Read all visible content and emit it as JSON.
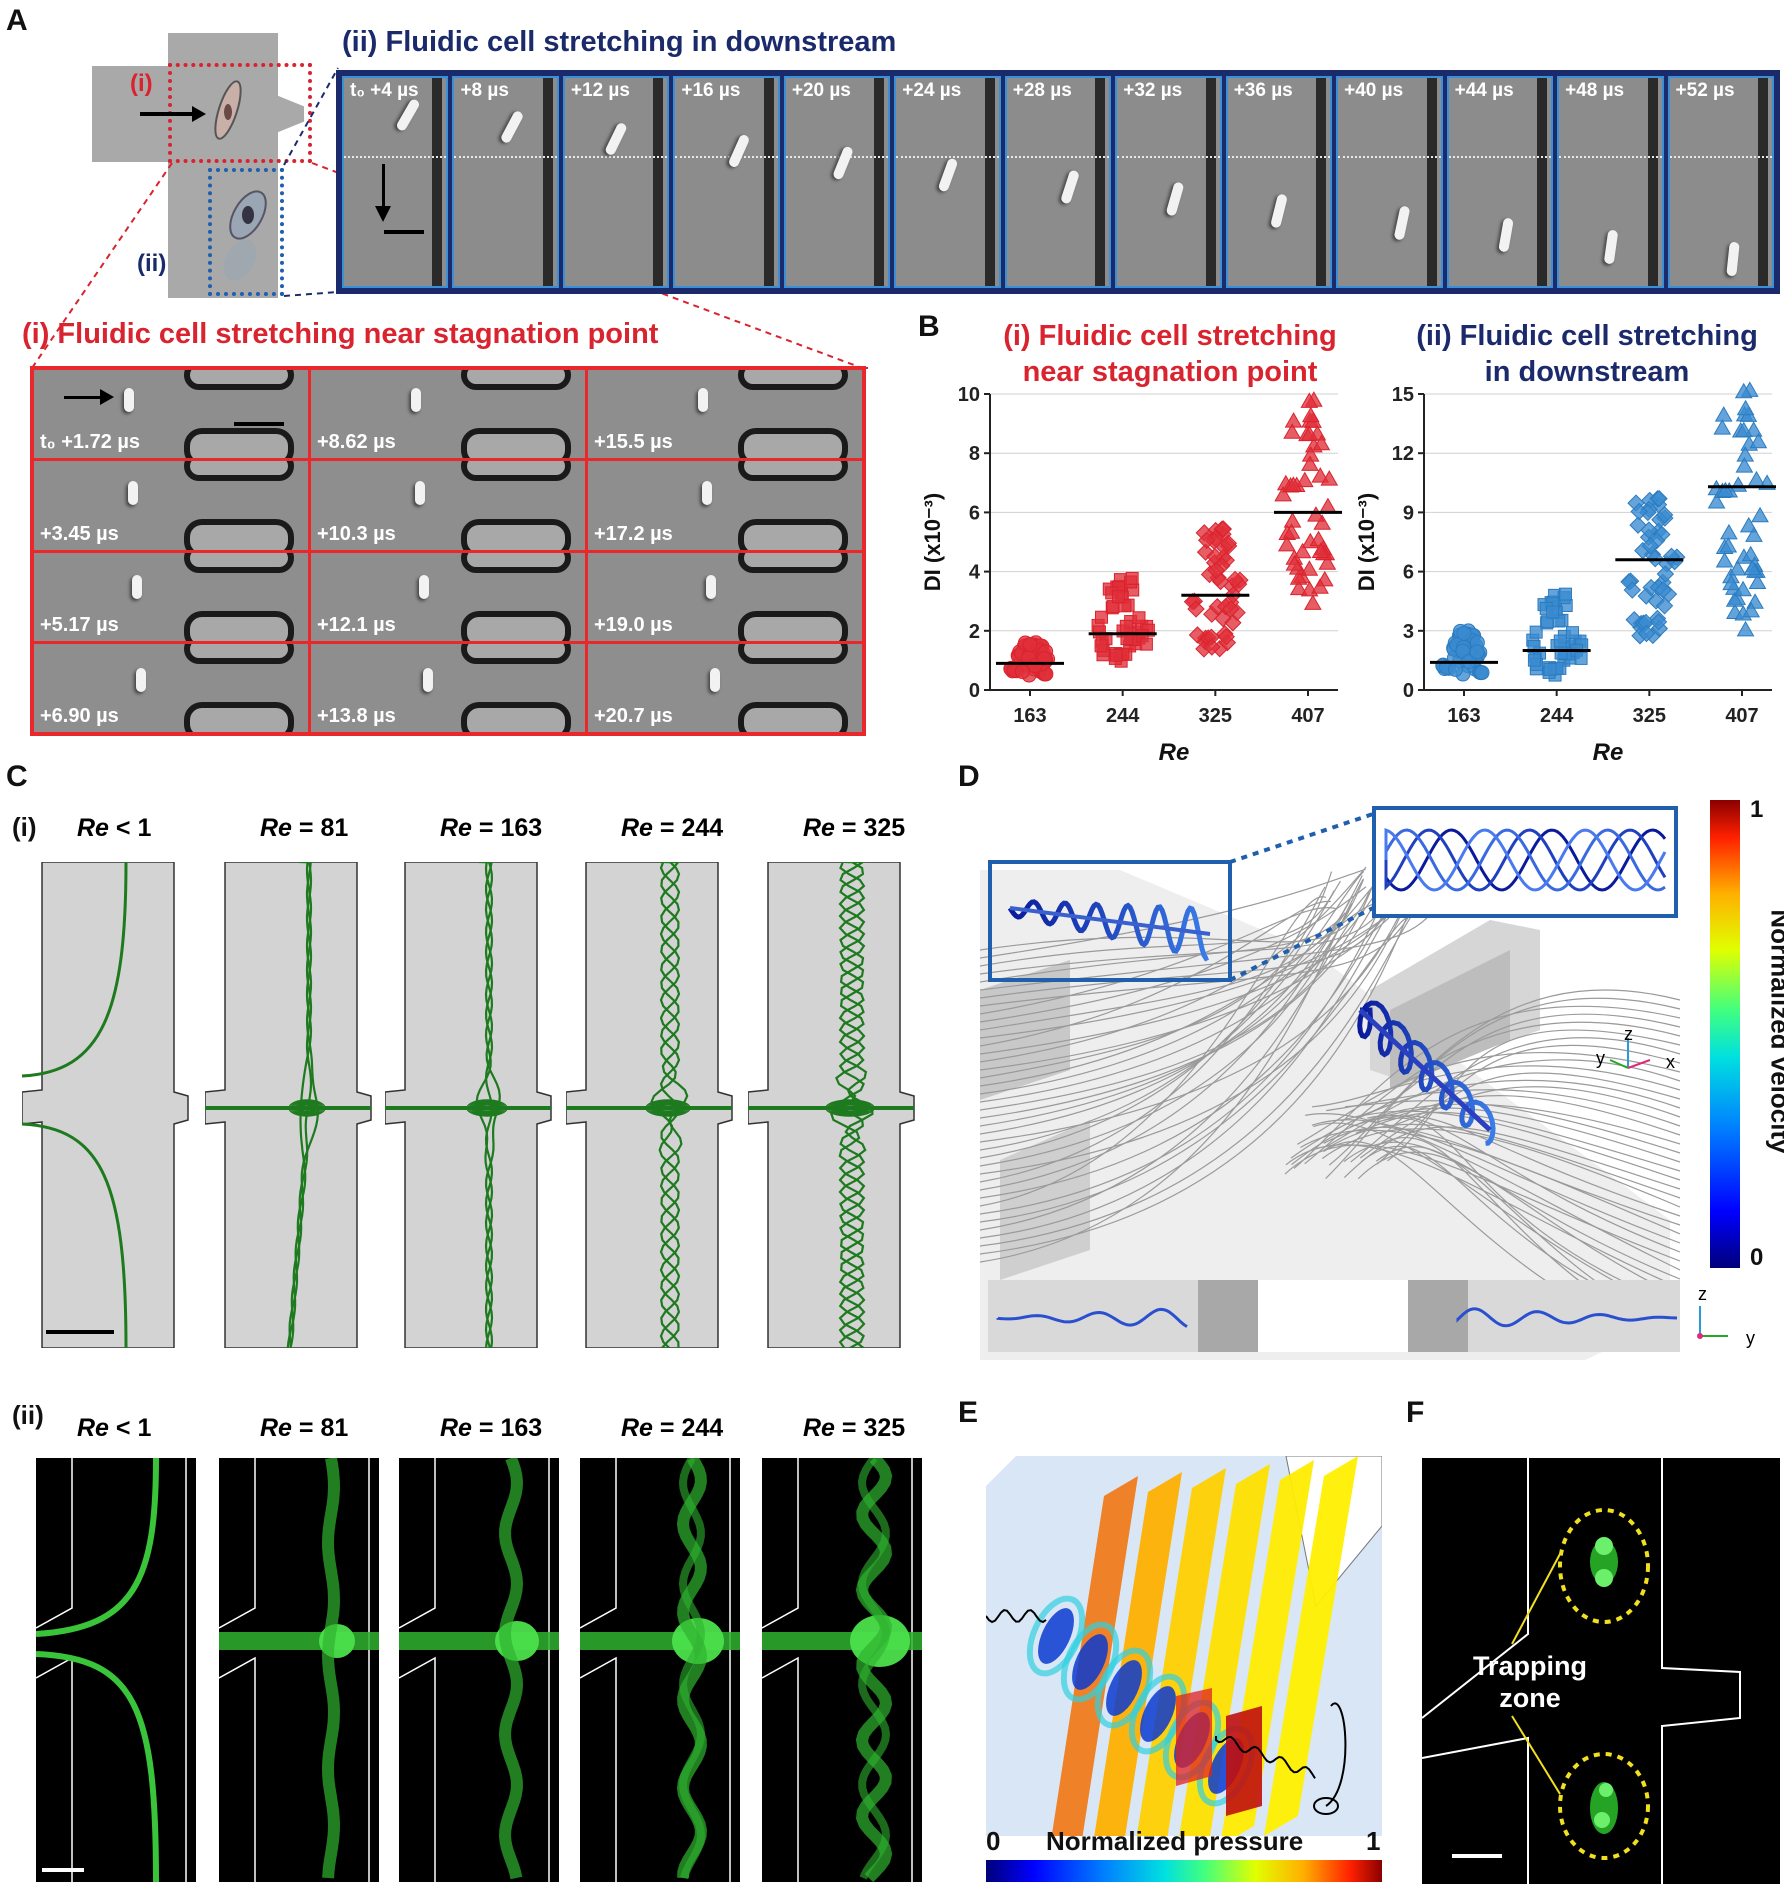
{
  "panel_labels": {
    "A": "A",
    "B": "B",
    "C": "C",
    "D": "D",
    "E": "E",
    "F": "F"
  },
  "panelA": {
    "title_ii": "(ii) Fluidic cell stretching in downstream",
    "title_i": "(i) Fluidic cell stretching near stagnation point",
    "schematic_i": "(i)",
    "schematic_ii": "(ii)",
    "downstream_times": [
      "t₀ +4 µs",
      "+8 µs",
      "+12 µs",
      "+16 µs",
      "+20 µs",
      "+24 µs",
      "+28 µs",
      "+32 µs",
      "+36 µs",
      "+40 µs",
      "+44 µs",
      "+48 µs",
      "+52 µs"
    ],
    "stagnation_times": [
      [
        "t₀ +1.72 µs",
        "+8.62 µs",
        "+15.5 µs"
      ],
      [
        "+3.45 µs",
        "+10.3 µs",
        "+17.2 µs"
      ],
      [
        "+5.17 µs",
        "+12.1 µs",
        "+19.0 µs"
      ],
      [
        "+6.90 µs",
        "+13.8 µs",
        "+20.7 µs"
      ]
    ]
  },
  "panelB": {
    "title_i_line1": "(i) Fluidic cell stretching",
    "title_i_line2": "near stagnation point",
    "title_ii_line1": "(ii) Fluidic cell stretching",
    "title_ii_line2": "in downstream",
    "ylabel": "DI (x10⁻³)",
    "xlabel": "Re"
  },
  "chart_data": [
    {
      "type": "scatter",
      "title": "(i) Fluidic cell stretching near stagnation point",
      "xlabel": "Re",
      "ylabel": "DI (x10⁻³)",
      "categories": [
        "163",
        "244",
        "325",
        "407"
      ],
      "ylim": [
        0,
        10
      ],
      "yticks": [
        0,
        2,
        4,
        6,
        8,
        10
      ],
      "grid": true,
      "series": [
        {
          "name": "163",
          "marker": "circle",
          "color": "#d9232e",
          "mean": 0.9,
          "spread": [
            0.5,
            1.6
          ]
        },
        {
          "name": "244",
          "marker": "square",
          "color": "#d9232e",
          "mean": 1.9,
          "spread": [
            0.8,
            3.8
          ]
        },
        {
          "name": "325",
          "marker": "diamond",
          "color": "#d9232e",
          "mean": 3.2,
          "spread": [
            1.3,
            5.5
          ]
        },
        {
          "name": "407",
          "marker": "triangle",
          "color": "#d9232e",
          "mean": 6.0,
          "spread": [
            2.9,
            9.8
          ]
        }
      ]
    },
    {
      "type": "scatter",
      "title": "(ii) Fluidic cell stretching in downstream",
      "xlabel": "Re",
      "ylabel": "DI (x10⁻³)",
      "categories": [
        "163",
        "244",
        "325",
        "407"
      ],
      "ylim": [
        0,
        15
      ],
      "yticks": [
        0,
        3,
        6,
        9,
        12,
        15
      ],
      "grid": true,
      "series": [
        {
          "name": "163",
          "marker": "circle",
          "color": "#2b7bbf",
          "mean": 1.4,
          "spread": [
            0.8,
            3.0
          ]
        },
        {
          "name": "244",
          "marker": "square",
          "color": "#2b7bbf",
          "mean": 2.0,
          "spread": [
            0.5,
            4.9
          ]
        },
        {
          "name": "325",
          "marker": "diamond",
          "color": "#2b7bbf",
          "mean": 6.6,
          "spread": [
            2.6,
            9.8
          ]
        },
        {
          "name": "407",
          "marker": "triangle",
          "color": "#2b7bbf",
          "mean": 10.3,
          "spread": [
            3.0,
            15.2
          ]
        }
      ]
    }
  ],
  "panelC": {
    "label_i": "(i)",
    "label_ii": "(ii)",
    "re_values": [
      "< 1",
      "= 81",
      "= 163",
      "= 244",
      "= 325"
    ],
    "re_prefix": "Re"
  },
  "panelD": {
    "colorbar_label": "Normalized velocity",
    "colorbar_max": "1",
    "colorbar_min": "0",
    "axis_y": "y",
    "axis_z": "z",
    "axis_x": "x"
  },
  "panelE": {
    "colorbar_label": "Normalized pressure",
    "colorbar_min": "0",
    "colorbar_max": "1"
  },
  "panelF": {
    "trapping_label_line1": "Trapping",
    "trapping_label_line2": "zone"
  },
  "colors": {
    "red": "#d9232e",
    "navy": "#1b2a6b",
    "blue": "#2b7bbf",
    "green": "#1e7a1e",
    "frame_blue": "#3a8fd6",
    "frame_red": "#e8282b"
  }
}
